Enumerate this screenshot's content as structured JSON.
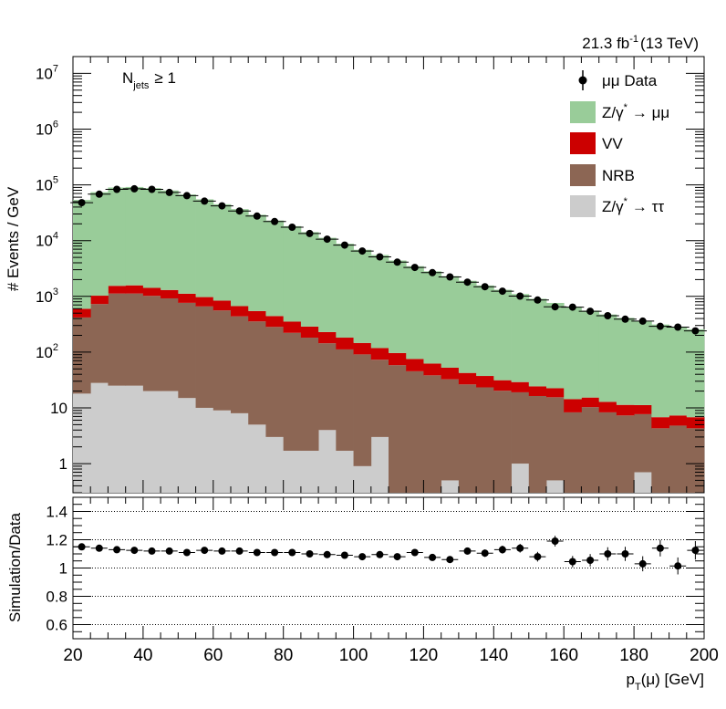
{
  "header": {
    "lumi": "21.3 fb",
    "lumi_exp": "-1",
    "energy": "(13 TeV)",
    "selection_main": "N",
    "selection_sub": "jets",
    "selection_cut": "≥ 1"
  },
  "legend": {
    "data": "μμ Data",
    "zmm_prefix": "Z/γ",
    "zmm_suffix": "→ μμ",
    "vv": "VV",
    "nrb": "NRB",
    "ztt_prefix": "Z/γ",
    "ztt_suffix": "→ ττ",
    "star": "*"
  },
  "colors": {
    "zmm": "#99cc99",
    "vv": "#cc0000",
    "nrb": "#8c6654",
    "ztt": "#cccccc",
    "data": "#000000"
  },
  "chart_data": [
    {
      "type": "bar",
      "stacked": true,
      "ylog": true,
      "ylabel": "# Events / GeV",
      "xlim": [
        20,
        200
      ],
      "ylim": [
        0.3,
        20000000
      ],
      "ytick_labels": [
        {
          "value": 1,
          "label": "1"
        },
        {
          "value": 10,
          "label": "10"
        },
        {
          "value": 100,
          "label": "10",
          "exp": "2"
        },
        {
          "value": 1000,
          "label": "10",
          "exp": "3"
        },
        {
          "value": 10000,
          "label": "10",
          "exp": "4"
        },
        {
          "value": 100000,
          "label": "10",
          "exp": "5"
        },
        {
          "value": 1000000,
          "label": "10",
          "exp": "6"
        },
        {
          "value": 10000000,
          "label": "10",
          "exp": "7"
        }
      ],
      "bin_edges": [
        20,
        25,
        30,
        35,
        40,
        45,
        50,
        55,
        60,
        65,
        70,
        75,
        80,
        85,
        90,
        95,
        100,
        105,
        110,
        115,
        120,
        125,
        130,
        135,
        140,
        145,
        150,
        155,
        160,
        165,
        170,
        175,
        180,
        185,
        190,
        195,
        200
      ],
      "series": [
        {
          "name": "Z/γ* → ττ",
          "key": "ztt",
          "values": [
            18,
            28,
            25,
            25,
            20,
            20,
            15,
            10,
            9,
            8,
            5,
            3,
            1.7,
            1.7,
            4,
            1.7,
            0.9,
            3,
            0.3,
            0.3,
            0.3,
            0.5,
            0.3,
            0.3,
            0.3,
            1,
            0.3,
            0.5,
            0.3,
            0.3,
            0.3,
            0.3,
            0.7,
            0.3,
            0.3,
            0.3
          ]
        },
        {
          "name": "NRB",
          "key": "nrb",
          "values": [
            400,
            700,
            1100,
            1100,
            1000,
            900,
            750,
            650,
            550,
            430,
            350,
            280,
            220,
            180,
            140,
            110,
            90,
            70,
            58,
            45,
            38,
            32,
            26,
            23,
            20,
            18,
            16,
            15,
            8,
            10,
            8,
            7,
            7,
            4,
            4.5,
            4
          ]
        },
        {
          "name": "VV",
          "key": "vv",
          "values": [
            180,
            300,
            420,
            450,
            400,
            380,
            350,
            310,
            280,
            230,
            190,
            160,
            130,
            105,
            85,
            70,
            55,
            45,
            38,
            30,
            24,
            20,
            16,
            14,
            11,
            10,
            8,
            7,
            6,
            5,
            4.5,
            4,
            3.5,
            2.5,
            2.5,
            2.5
          ]
        },
        {
          "name": "Z/γ* → μμ",
          "key": "zmm",
          "values": [
            53000,
            73000,
            88000,
            90000,
            86000,
            78000,
            66000,
            54000,
            44000,
            36000,
            28500,
            22500,
            17800,
            13900,
            11000,
            8600,
            6700,
            5400,
            4300,
            3400,
            2750,
            2250,
            1860,
            1530,
            1280,
            1070,
            880,
            740,
            640,
            540,
            460,
            400,
            350,
            305,
            270,
            250
          ]
        }
      ]
    },
    {
      "type": "scatter",
      "name": "μμ Data",
      "x": [
        22.5,
        27.5,
        32.5,
        37.5,
        42.5,
        47.5,
        52.5,
        57.5,
        62.5,
        67.5,
        72.5,
        77.5,
        82.5,
        87.5,
        92.5,
        97.5,
        102.5,
        107.5,
        112.5,
        117.5,
        122.5,
        127.5,
        132.5,
        137.5,
        142.5,
        147.5,
        152.5,
        157.5,
        162.5,
        167.5,
        172.5,
        177.5,
        182.5,
        187.5,
        192.5,
        197.5
      ],
      "y": [
        48000,
        68000,
        83000,
        85000,
        83000,
        73000,
        64000,
        51000,
        42000,
        34000,
        27500,
        22000,
        17400,
        13400,
        10600,
        8300,
        6500,
        5100,
        4100,
        3300,
        2660,
        2230,
        1800,
        1490,
        1240,
        1010,
        860,
        650,
        640,
        540,
        450,
        390,
        360,
        290,
        280,
        240
      ]
    },
    {
      "type": "scatter",
      "ylabel": "Simulation/Data",
      "xlabel": "p",
      "xlabel_sub": "T",
      "xlabel_rest": "(μ) [GeV]",
      "xlim": [
        20,
        200
      ],
      "ylim": [
        0.5,
        1.5
      ],
      "grid_y": [
        0.6,
        0.8,
        1.0,
        1.2,
        1.4
      ],
      "ytick_labels": [
        "0.6",
        "0.8",
        "1",
        "1.2",
        "1.4"
      ],
      "xtick_labels": [
        "20",
        "40",
        "60",
        "80",
        "100",
        "120",
        "140",
        "160",
        "180",
        "200"
      ],
      "x": [
        22.5,
        27.5,
        32.5,
        37.5,
        42.5,
        47.5,
        52.5,
        57.5,
        62.5,
        67.5,
        72.5,
        77.5,
        82.5,
        87.5,
        92.5,
        97.5,
        102.5,
        107.5,
        112.5,
        117.5,
        122.5,
        127.5,
        132.5,
        137.5,
        142.5,
        147.5,
        152.5,
        157.5,
        162.5,
        167.5,
        172.5,
        177.5,
        182.5,
        187.5,
        192.5,
        197.5
      ],
      "y": [
        1.15,
        1.14,
        1.13,
        1.125,
        1.12,
        1.12,
        1.11,
        1.125,
        1.12,
        1.12,
        1.11,
        1.11,
        1.11,
        1.1,
        1.095,
        1.09,
        1.08,
        1.095,
        1.08,
        1.11,
        1.075,
        1.06,
        1.12,
        1.105,
        1.13,
        1.14,
        1.08,
        1.19,
        1.045,
        1.055,
        1.1,
        1.1,
        1.03,
        1.14,
        1.015,
        1.125
      ],
      "err": [
        0.005,
        0.005,
        0.005,
        0.005,
        0.005,
        0.005,
        0.005,
        0.005,
        0.006,
        0.006,
        0.007,
        0.008,
        0.009,
        0.01,
        0.011,
        0.012,
        0.013,
        0.015,
        0.016,
        0.018,
        0.02,
        0.022,
        0.024,
        0.026,
        0.028,
        0.031,
        0.034,
        0.038,
        0.04,
        0.044,
        0.047,
        0.05,
        0.053,
        0.058,
        0.06,
        0.065
      ]
    }
  ]
}
